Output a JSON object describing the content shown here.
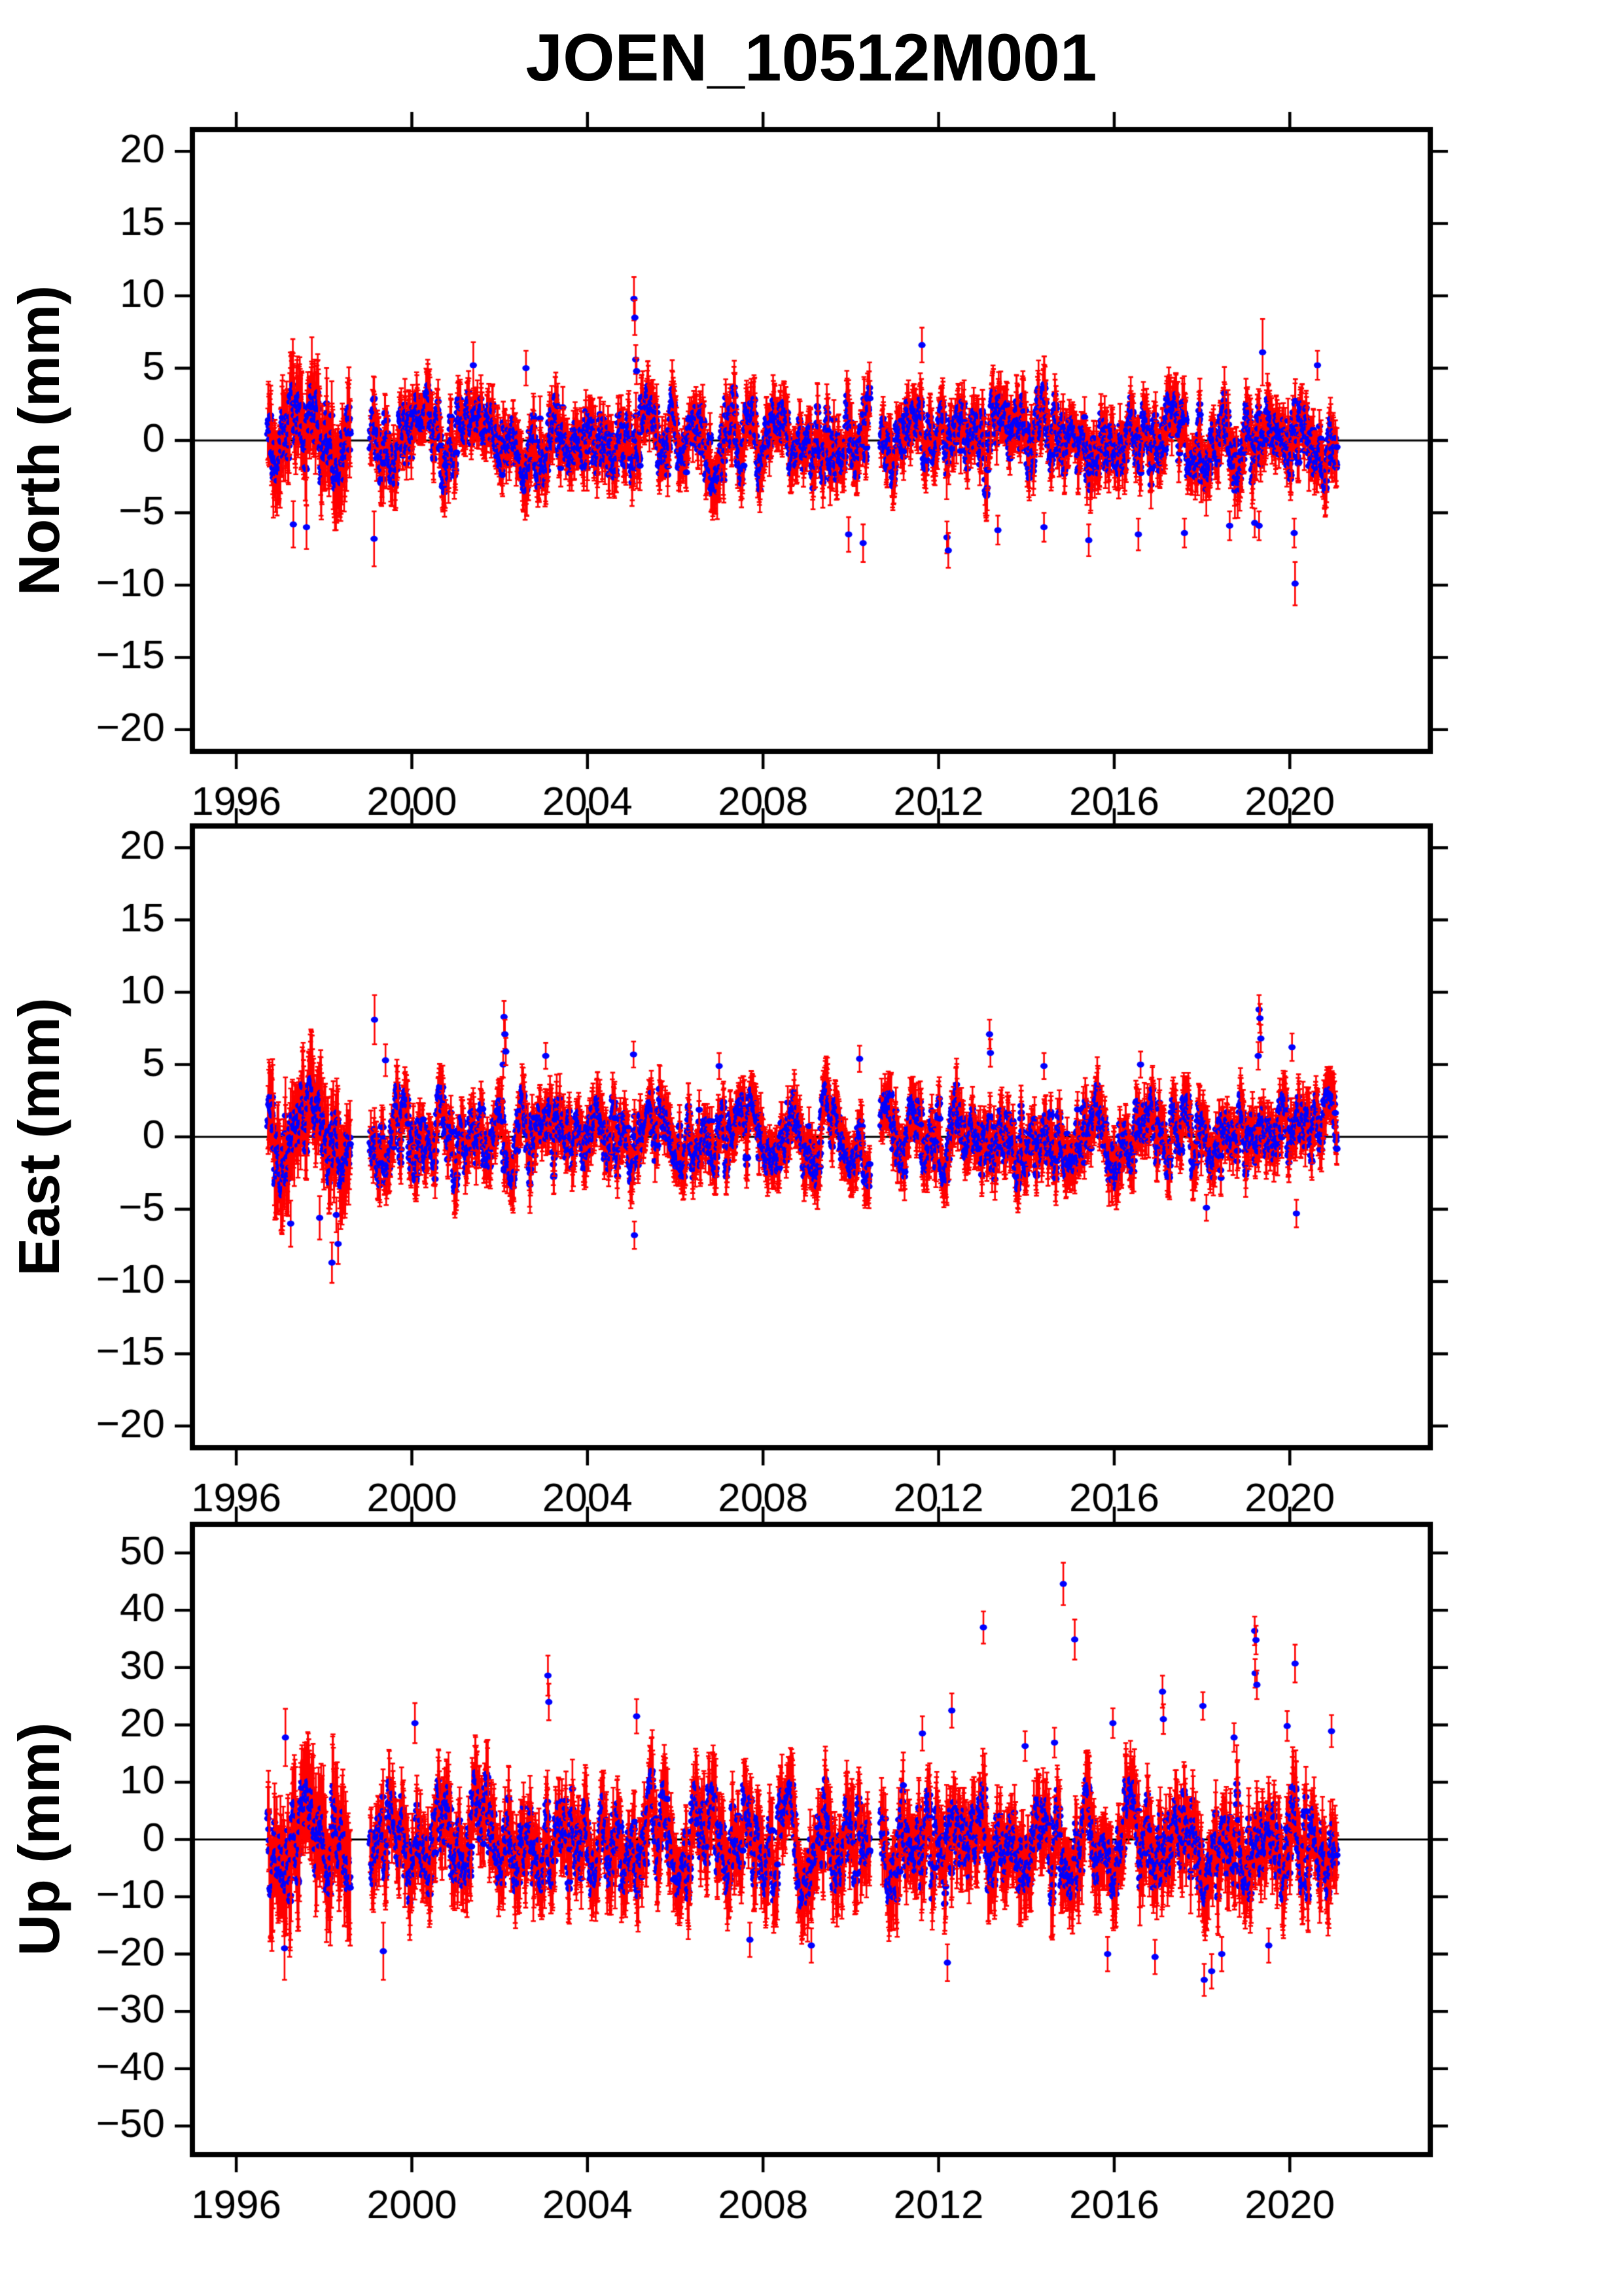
{
  "figure": {
    "title": "JOEN_10512M001",
    "panel_labels": {
      "north": "North (mm)",
      "east": "East (mm)",
      "up": "Up (mm)"
    }
  },
  "chart_data": {
    "type": "scatter",
    "title": "JOEN_10512M001",
    "xlabel": "",
    "x_range": [
      1995.0,
      2023.2
    ],
    "x_ticks": [
      1996,
      2000,
      2004,
      2008,
      2012,
      2016,
      2020
    ],
    "legend": "none",
    "grid": "off",
    "time_series": {
      "start": 1996.72,
      "end": 2021.08,
      "step_years": 0.007,
      "x_jitter": 0.0015,
      "gaps": [
        [
          1998.6,
          1999.05
        ],
        [
          2010.44,
          2010.68
        ]
      ],
      "seed": 20105121
    },
    "style": {
      "marker_color": "#0000ff",
      "marker_rx": 5.6,
      "marker_ry": 4.6,
      "errorbar_color": "#ff0000",
      "errorbar_line_width": 2.6,
      "errorbar_cap_half_width": 3.8,
      "zero_line_color": "#000000",
      "zero_line_width": 3,
      "frame_color": "#000000",
      "frame_width": 8,
      "tick_length": 27,
      "tick_width": 4.5
    },
    "panels": [
      {
        "id": "north",
        "ylabel": "North (mm)",
        "y_range": [
          -21.5,
          21.5
        ],
        "y_ticks": [
          -20,
          -15,
          -10,
          -5,
          0,
          5,
          10,
          15,
          20
        ],
        "noise": {
          "sigma": 1.7,
          "ar": 0.88,
          "seasonal_amp": 0.7,
          "seasonal_phase": 0.12,
          "clamp": 4.6,
          "early_until": 1998.6,
          "early_sigma_mult": 1.25,
          "early_err_mult": 1.7
        },
        "error": {
          "base": 1.15,
          "spread": 0.5
        },
        "outliers": [
          [
            1997.3,
            -5.8,
            1.6
          ],
          [
            1997.6,
            -6.0,
            1.5
          ],
          [
            1999.14,
            -6.8,
            1.9
          ],
          [
            2001.4,
            5.2,
            1.6
          ],
          [
            2002.6,
            5.0,
            1.2
          ],
          [
            2005.06,
            9.8,
            1.5
          ],
          [
            2005.08,
            8.5,
            1.2
          ],
          [
            2005.1,
            5.6,
            1.0
          ],
          [
            2005.12,
            4.8,
            0.9
          ],
          [
            2009.95,
            -6.5,
            1.2
          ],
          [
            2010.28,
            -7.1,
            1.3
          ],
          [
            2011.62,
            6.6,
            1.2
          ],
          [
            2012.19,
            -6.7,
            1.1
          ],
          [
            2012.22,
            -7.6,
            1.2
          ],
          [
            2013.35,
            -6.2,
            1.0
          ],
          [
            2014.4,
            -6.0,
            1.0
          ],
          [
            2015.42,
            -6.9,
            1.1
          ],
          [
            2016.55,
            -6.5,
            1.1
          ],
          [
            2017.6,
            -6.4,
            1.0
          ],
          [
            2018.63,
            -5.9,
            1.0
          ],
          [
            2019.2,
            -5.7,
            1.0
          ],
          [
            2019.3,
            -5.9,
            1.0
          ],
          [
            2019.38,
            6.1,
            2.3
          ],
          [
            2020.1,
            -6.4,
            1.0
          ],
          [
            2020.12,
            -9.9,
            1.5
          ],
          [
            2020.63,
            5.2,
            1.0
          ]
        ]
      },
      {
        "id": "east",
        "ylabel": "East (mm)",
        "y_range": [
          -21.5,
          21.5
        ],
        "y_ticks": [
          -20,
          -15,
          -10,
          -5,
          0,
          5,
          10,
          15,
          20
        ],
        "noise": {
          "sigma": 1.6,
          "ar": 0.88,
          "seasonal_amp": 0.7,
          "seasonal_phase": 0.45,
          "clamp": 4.4,
          "early_until": 1998.6,
          "early_sigma_mult": 1.4,
          "early_err_mult": 1.8
        },
        "error": {
          "base": 1.1,
          "spread": 0.5
        },
        "outliers": [
          [
            1997.24,
            -6.0,
            1.6
          ],
          [
            1997.9,
            -5.6,
            1.5
          ],
          [
            1998.18,
            -8.7,
            1.4
          ],
          [
            1998.28,
            -5.4,
            1.2
          ],
          [
            1998.32,
            -7.4,
            1.4
          ],
          [
            1999.15,
            8.1,
            1.7
          ],
          [
            1999.4,
            5.3,
            1.1
          ],
          [
            2002.08,
            5.0,
            0.9
          ],
          [
            2002.1,
            8.3,
            1.1
          ],
          [
            2002.12,
            7.1,
            1.0
          ],
          [
            2002.14,
            5.9,
            0.95
          ],
          [
            2003.05,
            5.6,
            0.9
          ],
          [
            2005.05,
            5.7,
            0.9
          ],
          [
            2005.07,
            -6.8,
            0.95
          ],
          [
            2007.0,
            4.9,
            0.9
          ],
          [
            2010.2,
            5.4,
            0.9
          ],
          [
            2013.16,
            7.1,
            1.0
          ],
          [
            2013.18,
            5.8,
            0.95
          ],
          [
            2014.4,
            4.9,
            0.9
          ],
          [
            2016.6,
            5.0,
            0.9
          ],
          [
            2018.1,
            -4.9,
            0.9
          ],
          [
            2019.28,
            5.6,
            0.95
          ],
          [
            2019.3,
            8.8,
            1.0
          ],
          [
            2019.32,
            8.2,
            1.0
          ],
          [
            2019.34,
            6.8,
            0.95
          ],
          [
            2020.05,
            6.2,
            0.95
          ],
          [
            2020.15,
            -5.3,
            0.95
          ]
        ]
      },
      {
        "id": "up",
        "ylabel": "Up (mm)",
        "y_range": [
          -55,
          55
        ],
        "y_ticks": [
          -50,
          -40,
          -30,
          -20,
          -10,
          0,
          10,
          20,
          30,
          40,
          50
        ],
        "noise": {
          "sigma": 5.2,
          "ar": 0.87,
          "seasonal_amp": 3.8,
          "seasonal_phase": 0.3,
          "clamp": 13.5,
          "early_until": 1998.6,
          "early_sigma_mult": 1.15,
          "early_err_mult": 1.5
        },
        "error": {
          "base": 4.3,
          "spread": 0.5
        },
        "outliers": [
          [
            1997.1,
            -19.0,
            5.5
          ],
          [
            1997.12,
            17.8,
            5.0
          ],
          [
            1999.35,
            -19.5,
            5.0
          ],
          [
            2000.07,
            20.3,
            3.5
          ],
          [
            2003.1,
            28.6,
            3.5
          ],
          [
            2003.12,
            24.0,
            3.2
          ],
          [
            2005.12,
            21.5,
            3.0
          ],
          [
            2007.7,
            -17.5,
            3.0
          ],
          [
            2009.1,
            -18.5,
            3.0
          ],
          [
            2011.63,
            18.5,
            3.0
          ],
          [
            2012.2,
            -21.5,
            3.2
          ],
          [
            2012.3,
            22.5,
            3.0
          ],
          [
            2013.02,
            37.0,
            2.8
          ],
          [
            2013.97,
            16.3,
            2.6
          ],
          [
            2014.64,
            16.9,
            2.6
          ],
          [
            2014.84,
            44.6,
            3.7
          ],
          [
            2015.1,
            34.9,
            3.5
          ],
          [
            2015.85,
            -20.0,
            3.0
          ],
          [
            2015.97,
            20.3,
            2.6
          ],
          [
            2016.93,
            -20.5,
            3.0
          ],
          [
            2017.1,
            25.8,
            2.8
          ],
          [
            2017.12,
            21.0,
            2.6
          ],
          [
            2018.02,
            23.3,
            2.4
          ],
          [
            2018.05,
            -24.5,
            2.8
          ],
          [
            2018.22,
            -23.0,
            3.0
          ],
          [
            2018.45,
            -20.0,
            3.0
          ],
          [
            2018.73,
            17.8,
            2.5
          ],
          [
            2019.2,
            36.4,
            2.5
          ],
          [
            2019.21,
            29.0,
            2.5
          ],
          [
            2019.23,
            34.8,
            2.5
          ],
          [
            2019.25,
            27.0,
            2.5
          ],
          [
            2019.52,
            -18.5,
            3.0
          ],
          [
            2019.94,
            19.8,
            2.6
          ],
          [
            2020.12,
            30.7,
            3.3
          ],
          [
            2020.95,
            18.9,
            2.8
          ]
        ]
      }
    ]
  }
}
